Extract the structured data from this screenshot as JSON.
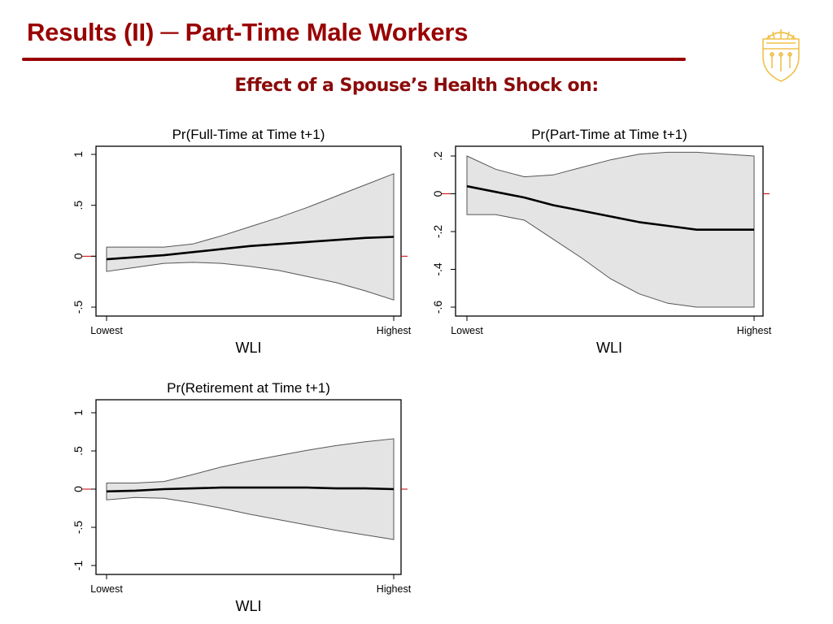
{
  "slide": {
    "title": "Results (II) ─ Part-Time Male Workers",
    "subtitle": "Effect of a Spouse’s Health Shock on:",
    "logo_icon": "university-seal-icon",
    "accent_color": "#990000"
  },
  "chart_data": [
    {
      "type": "line",
      "title": "Pr(Full-Time at Time t+1)",
      "xlabel": "WLI",
      "ylabel": "",
      "x_tick_labels": [
        "Lowest",
        "Highest"
      ],
      "xlim": [
        0,
        1
      ],
      "ylim": [
        -0.5,
        1
      ],
      "yticks": [
        1,
        0.5,
        0,
        -0.5
      ],
      "ytick_labels": [
        "1",
        ".5",
        "0",
        "-.5"
      ],
      "x": [
        0,
        0.1,
        0.2,
        0.3,
        0.4,
        0.5,
        0.6,
        0.7,
        0.8,
        0.9,
        1
      ],
      "y": [
        -0.03,
        -0.01,
        0.01,
        0.04,
        0.07,
        0.1,
        0.12,
        0.14,
        0.16,
        0.18,
        0.19
      ],
      "upper": [
        0.09,
        0.09,
        0.09,
        0.12,
        0.2,
        0.29,
        0.38,
        0.48,
        0.59,
        0.7,
        0.81
      ],
      "lower": [
        -0.15,
        -0.11,
        -0.07,
        -0.06,
        -0.07,
        -0.1,
        -0.14,
        -0.2,
        -0.26,
        -0.34,
        -0.43
      ],
      "reference_line": 0,
      "reference_color": "#cc0000"
    },
    {
      "type": "line",
      "title": "Pr(Part-Time at Time t+1)",
      "xlabel": "WLI",
      "ylabel": "",
      "x_tick_labels": [
        "Lowest",
        "Highest"
      ],
      "xlim": [
        0,
        1
      ],
      "ylim": [
        -0.62,
        0.24
      ],
      "yticks": [
        0.2,
        0,
        -0.2,
        -0.4,
        -0.6
      ],
      "ytick_labels": [
        ".2",
        "0",
        "-.2",
        "-.4",
        "-.6"
      ],
      "x": [
        0,
        0.1,
        0.2,
        0.3,
        0.4,
        0.5,
        0.6,
        0.7,
        0.8,
        0.9,
        1
      ],
      "y": [
        0.04,
        0.01,
        -0.02,
        -0.06,
        -0.09,
        -0.12,
        -0.15,
        -0.17,
        -0.19,
        -0.19,
        -0.19
      ],
      "upper": [
        0.2,
        0.13,
        0.09,
        0.1,
        0.14,
        0.18,
        0.21,
        0.22,
        0.22,
        0.21,
        0.2
      ],
      "lower": [
        -0.11,
        -0.11,
        -0.14,
        -0.24,
        -0.34,
        -0.45,
        -0.53,
        -0.58,
        -0.6,
        -0.6,
        -0.6
      ],
      "reference_line": 0,
      "reference_color": "#cc0000"
    },
    {
      "type": "line",
      "title": "Pr(Retirement at Time t+1)",
      "xlabel": "WLI",
      "ylabel": "",
      "x_tick_labels": [
        "Lowest",
        "Highest"
      ],
      "xlim": [
        0,
        1
      ],
      "ylim": [
        -1,
        1
      ],
      "yticks": [
        1,
        0.5,
        0,
        -0.5,
        -1
      ],
      "ytick_labels": [
        "1",
        ".5",
        "0",
        "-.5",
        "-1"
      ],
      "x": [
        0,
        0.1,
        0.2,
        0.3,
        0.4,
        0.5,
        0.6,
        0.7,
        0.8,
        0.9,
        1
      ],
      "y": [
        -0.03,
        -0.02,
        0,
        0.01,
        0.02,
        0.02,
        0.02,
        0.02,
        0.01,
        0.01,
        0
      ],
      "upper": [
        0.08,
        0.08,
        0.1,
        0.19,
        0.29,
        0.37,
        0.44,
        0.51,
        0.57,
        0.62,
        0.66
      ],
      "lower": [
        -0.14,
        -0.11,
        -0.12,
        -0.18,
        -0.25,
        -0.33,
        -0.4,
        -0.47,
        -0.54,
        -0.6,
        -0.66
      ],
      "reference_line": 0,
      "reference_color": "#cc0000"
    }
  ]
}
